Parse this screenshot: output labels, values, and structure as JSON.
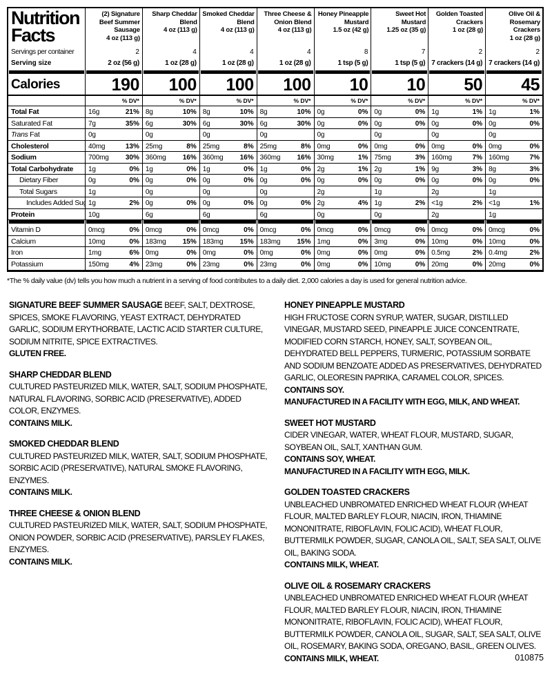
{
  "panel": {
    "title_line1": "Nutrition",
    "title_line2": "Facts",
    "servings_label": "Servings per container",
    "serving_size_label": "Serving size",
    "calories_label": "Calories",
    "dv_header": "% DV*"
  },
  "rows": [
    {
      "label": "Total Fat",
      "style": "bold"
    },
    {
      "label": "Saturated Fat",
      "style": "plain"
    },
    {
      "label": "Trans Fat",
      "style": "trans",
      "label_parts": [
        "Trans",
        " Fat"
      ]
    },
    {
      "label": "Cholesterol",
      "style": "bold"
    },
    {
      "label": "Sodium",
      "style": "bold"
    },
    {
      "label": "Total Carbohydrate",
      "style": "bold"
    },
    {
      "label": "Dietary Fiber",
      "style": "ind1"
    },
    {
      "label": "Total Sugars",
      "style": "ind1"
    },
    {
      "label": "Includes Added Sugars",
      "style": "ind2"
    },
    {
      "label": "Protein",
      "style": "bold",
      "bar_after": true
    },
    {
      "label": "Vitamin D",
      "style": "plain"
    },
    {
      "label": "Calcium",
      "style": "plain"
    },
    {
      "label": "Iron",
      "style": "plain"
    },
    {
      "label": "Potassium",
      "style": "plain",
      "last": true
    }
  ],
  "products": [
    {
      "name": "(2) Signature Beef Summer Sausage",
      "net_weight": "4 oz (113 g)",
      "servings": "2",
      "serving_size": "2 oz (56 g)",
      "calories": "190",
      "cells": [
        [
          "16g",
          "21%"
        ],
        [
          "7g",
          "35%"
        ],
        [
          "0g",
          ""
        ],
        [
          "40mg",
          "13%"
        ],
        [
          "700mg",
          "30%"
        ],
        [
          "1g",
          "0%"
        ],
        [
          "0g",
          "0%"
        ],
        [
          "1g",
          ""
        ],
        [
          "1g",
          "2%"
        ],
        [
          "10g",
          ""
        ],
        [
          "0mcg",
          "0%"
        ],
        [
          "10mg",
          "0%"
        ],
        [
          "1mg",
          "6%"
        ],
        [
          "150mg",
          "4%"
        ]
      ]
    },
    {
      "name": "Sharp Cheddar Blend",
      "net_weight": "4 oz (113 g)",
      "servings": "4",
      "serving_size": "1 oz (28 g)",
      "calories": "100",
      "cells": [
        [
          "8g",
          "10%"
        ],
        [
          "6g",
          "30%"
        ],
        [
          "0g",
          ""
        ],
        [
          "25mg",
          "8%"
        ],
        [
          "360mg",
          "16%"
        ],
        [
          "1g",
          "0%"
        ],
        [
          "0g",
          "0%"
        ],
        [
          "0g",
          ""
        ],
        [
          "0g",
          "0%"
        ],
        [
          "6g",
          ""
        ],
        [
          "0mcg",
          "0%"
        ],
        [
          "183mg",
          "15%"
        ],
        [
          "0mg",
          "0%"
        ],
        [
          "23mg",
          "0%"
        ]
      ]
    },
    {
      "name": "Smoked Cheddar Blend",
      "net_weight": "4 oz (113 g)",
      "servings": "4",
      "serving_size": "1 oz (28 g)",
      "calories": "100",
      "cells": [
        [
          "8g",
          "10%"
        ],
        [
          "6g",
          "30%"
        ],
        [
          "0g",
          ""
        ],
        [
          "25mg",
          "8%"
        ],
        [
          "360mg",
          "16%"
        ],
        [
          "1g",
          "0%"
        ],
        [
          "0g",
          "0%"
        ],
        [
          "0g",
          ""
        ],
        [
          "0g",
          "0%"
        ],
        [
          "6g",
          ""
        ],
        [
          "0mcg",
          "0%"
        ],
        [
          "183mg",
          "15%"
        ],
        [
          "0mg",
          "0%"
        ],
        [
          "23mg",
          "0%"
        ]
      ]
    },
    {
      "name": "Three Cheese & Onion Blend",
      "net_weight": "4 oz (113 g)",
      "servings": "4",
      "serving_size": "1 oz (28 g)",
      "calories": "100",
      "cells": [
        [
          "8g",
          "10%"
        ],
        [
          "6g",
          "30%"
        ],
        [
          "0g",
          ""
        ],
        [
          "25mg",
          "8%"
        ],
        [
          "360mg",
          "16%"
        ],
        [
          "1g",
          "0%"
        ],
        [
          "0g",
          "0%"
        ],
        [
          "0g",
          ""
        ],
        [
          "0g",
          "0%"
        ],
        [
          "6g",
          ""
        ],
        [
          "0mcg",
          "0%"
        ],
        [
          "183mg",
          "15%"
        ],
        [
          "0mg",
          "0%"
        ],
        [
          "23mg",
          "0%"
        ]
      ]
    },
    {
      "name": "Honey Pineapple Mustard",
      "net_weight": "1.5 oz (42 g)",
      "servings": "8",
      "serving_size": "1 tsp (5 g)",
      "calories": "10",
      "cells": [
        [
          "0g",
          "0%"
        ],
        [
          "0g",
          "0%"
        ],
        [
          "0g",
          ""
        ],
        [
          "0mg",
          "0%"
        ],
        [
          "30mg",
          "1%"
        ],
        [
          "2g",
          "1%"
        ],
        [
          "0g",
          "0%"
        ],
        [
          "2g",
          ""
        ],
        [
          "2g",
          "4%"
        ],
        [
          "0g",
          ""
        ],
        [
          "0mcg",
          "0%"
        ],
        [
          "1mg",
          "0%"
        ],
        [
          "0mg",
          "0%"
        ],
        [
          "0mg",
          "0%"
        ]
      ]
    },
    {
      "name": "Sweet Hot Mustard",
      "net_weight": "1.25 oz (35 g)",
      "servings": "7",
      "serving_size": "1 tsp (5 g)",
      "calories": "10",
      "cells": [
        [
          "0g",
          "0%"
        ],
        [
          "0g",
          "0%"
        ],
        [
          "0g",
          ""
        ],
        [
          "0mg",
          "0%"
        ],
        [
          "75mg",
          "3%"
        ],
        [
          "2g",
          "1%"
        ],
        [
          "0g",
          "0%"
        ],
        [
          "1g",
          ""
        ],
        [
          "1g",
          "2%"
        ],
        [
          "0g",
          ""
        ],
        [
          "0mcg",
          "0%"
        ],
        [
          "3mg",
          "0%"
        ],
        [
          "0mg",
          "0%"
        ],
        [
          "10mg",
          "0%"
        ]
      ]
    },
    {
      "name": "Golden Toasted Crackers",
      "net_weight": "1 oz (28 g)",
      "servings": "2",
      "serving_size": "7 crackers (14 g)",
      "calories": "50",
      "cells": [
        [
          "1g",
          "1%"
        ],
        [
          "0g",
          "0%"
        ],
        [
          "0g",
          ""
        ],
        [
          "0mg",
          "0%"
        ],
        [
          "160mg",
          "7%"
        ],
        [
          "9g",
          "3%"
        ],
        [
          "0g",
          "0%"
        ],
        [
          "2g",
          ""
        ],
        [
          "<1g",
          "2%"
        ],
        [
          "2g",
          ""
        ],
        [
          "0mcg",
          "0%"
        ],
        [
          "10mg",
          "0%"
        ],
        [
          "0.5mg",
          "2%"
        ],
        [
          "20mg",
          "0%"
        ]
      ]
    },
    {
      "name": "Olive Oil & Rosemary Crackers",
      "net_weight": "1 oz (28 g)",
      "servings": "2",
      "serving_size": "7 crackers (14 g)",
      "calories": "45",
      "cells": [
        [
          "1g",
          "1%"
        ],
        [
          "0g",
          "0%"
        ],
        [
          "0g",
          ""
        ],
        [
          "0mg",
          "0%"
        ],
        [
          "160mg",
          "7%"
        ],
        [
          "8g",
          "3%"
        ],
        [
          "0g",
          "0%"
        ],
        [
          "1g",
          ""
        ],
        [
          "<1g",
          "1%"
        ],
        [
          "1g",
          ""
        ],
        [
          "0mcg",
          "0%"
        ],
        [
          "10mg",
          "0%"
        ],
        [
          "0.4mg",
          "2%"
        ],
        [
          "20mg",
          "0%"
        ]
      ]
    }
  ],
  "footnote": "*The % daily value (dv) tells you how much a nutrient in a serving of food contributes to a daily diet. 2,000 calories a day is used for general nutrition advice.",
  "ingredients": {
    "left": [
      {
        "heading": "SIGNATURE BEEF SUMMER SAUSAGE",
        "inline_heading": true,
        "body": "BEEF, SALT, DEXTROSE, SPICES, SMOKE FLAVORING, YEAST EXTRACT, DEHYDRATED GARLIC, SODIUM ERYTHORBATE, LACTIC ACID STARTER CULTURE, SODIUM NITRITE, SPICE EXTRACTIVES.",
        "notes": [
          "GLUTEN FREE."
        ]
      },
      {
        "heading": "SHARP CHEDDAR BLEND",
        "body": "CULTURED PASTEURIZED MILK, WATER, SALT, SODIUM PHOSPHATE, NATURAL FLAVORING, SORBIC ACID (PRESERVATIVE), ADDED COLOR, ENZYMES.",
        "notes": [
          "CONTAINS MILK."
        ]
      },
      {
        "heading": "SMOKED CHEDDAR BLEND",
        "body": "CULTURED PASTEURIZED MILK, WATER, SALT, SODIUM PHOSPHATE, SORBIC ACID (PRESERVATIVE), NATURAL SMOKE FLAVORING, ENZYMES.",
        "notes": [
          "CONTAINS MILK."
        ]
      },
      {
        "heading": "THREE CHEESE & ONION BLEND",
        "body": "CULTURED PASTEURIZED MILK, WATER, SALT, SODIUM PHOSPHATE, ONION POWDER, SORBIC ACID (PRESERVATIVE), PARSLEY FLAKES, ENZYMES.",
        "notes": [
          "CONTAINS MILK."
        ]
      }
    ],
    "right": [
      {
        "heading": "HONEY PINEAPPLE MUSTARD",
        "body": "HIGH FRUCTOSE CORN SYRUP, WATER, SUGAR, DISTILLED VINEGAR, MUSTARD SEED, PINEAPPLE JUICE CONCENTRATE, MODIFIED CORN STARCH, HONEY, SALT, SOYBEAN OIL, DEHYDRATED BELL PEPPERS, TURMERIC, POTASSIUM SORBATE AND SODIUM BENZOATE ADDED AS PRESERVATIVES, DEHYDRATED GARLIC, OLEORESIN PAPRIKA, CARAMEL COLOR, SPICES.",
        "notes": [
          "CONTAINS SOY.",
          "MANUFACTURED IN A FACILITY WITH EGG, MILK, AND WHEAT."
        ]
      },
      {
        "heading": "SWEET HOT MUSTARD",
        "body": "CIDER VINEGAR, WATER, WHEAT FLOUR, MUSTARD, SUGAR, SOYBEAN OIL, SALT, XANTHAN GUM.",
        "notes": [
          "CONTAINS SOY, WHEAT.",
          "MANUFACTURED IN A FACILITY WITH EGG, MILK."
        ]
      },
      {
        "heading": "GOLDEN TOASTED CRACKERS",
        "body": "UNBLEACHED UNBROMATED ENRICHED WHEAT FLOUR (WHEAT FLOUR, MALTED BARLEY FLOUR, NIACIN, IRON, THIAMINE MONONITRATE, RIBOFLAVIN, FOLIC ACID), WHEAT FLOUR, BUTTERMILK POWDER, SUGAR, CANOLA OIL, SALT, SEA SALT, OLIVE OIL, BAKING SODA.",
        "notes": [
          "CONTAINS MILK, WHEAT."
        ]
      },
      {
        "heading": "OLIVE OIL & ROSEMARY CRACKERS",
        "body": "UNBLEACHED UNBROMATED ENRICHED WHEAT FLOUR (WHEAT FLOUR, MALTED BARLEY FLOUR, NIACIN, IRON, THIAMINE MONONITRATE, RIBOFLAVIN, FOLIC ACID), WHEAT FLOUR, BUTTERMILK POWDER, CANOLA OIL, SUGAR, SALT, SEA SALT, OLIVE OIL, ROSEMARY, BAKING SODA, OREGANO, BASIL, GREEN OLIVES.",
        "notes": [
          "CONTAINS MILK, WHEAT."
        ]
      }
    ]
  },
  "code": "010875"
}
